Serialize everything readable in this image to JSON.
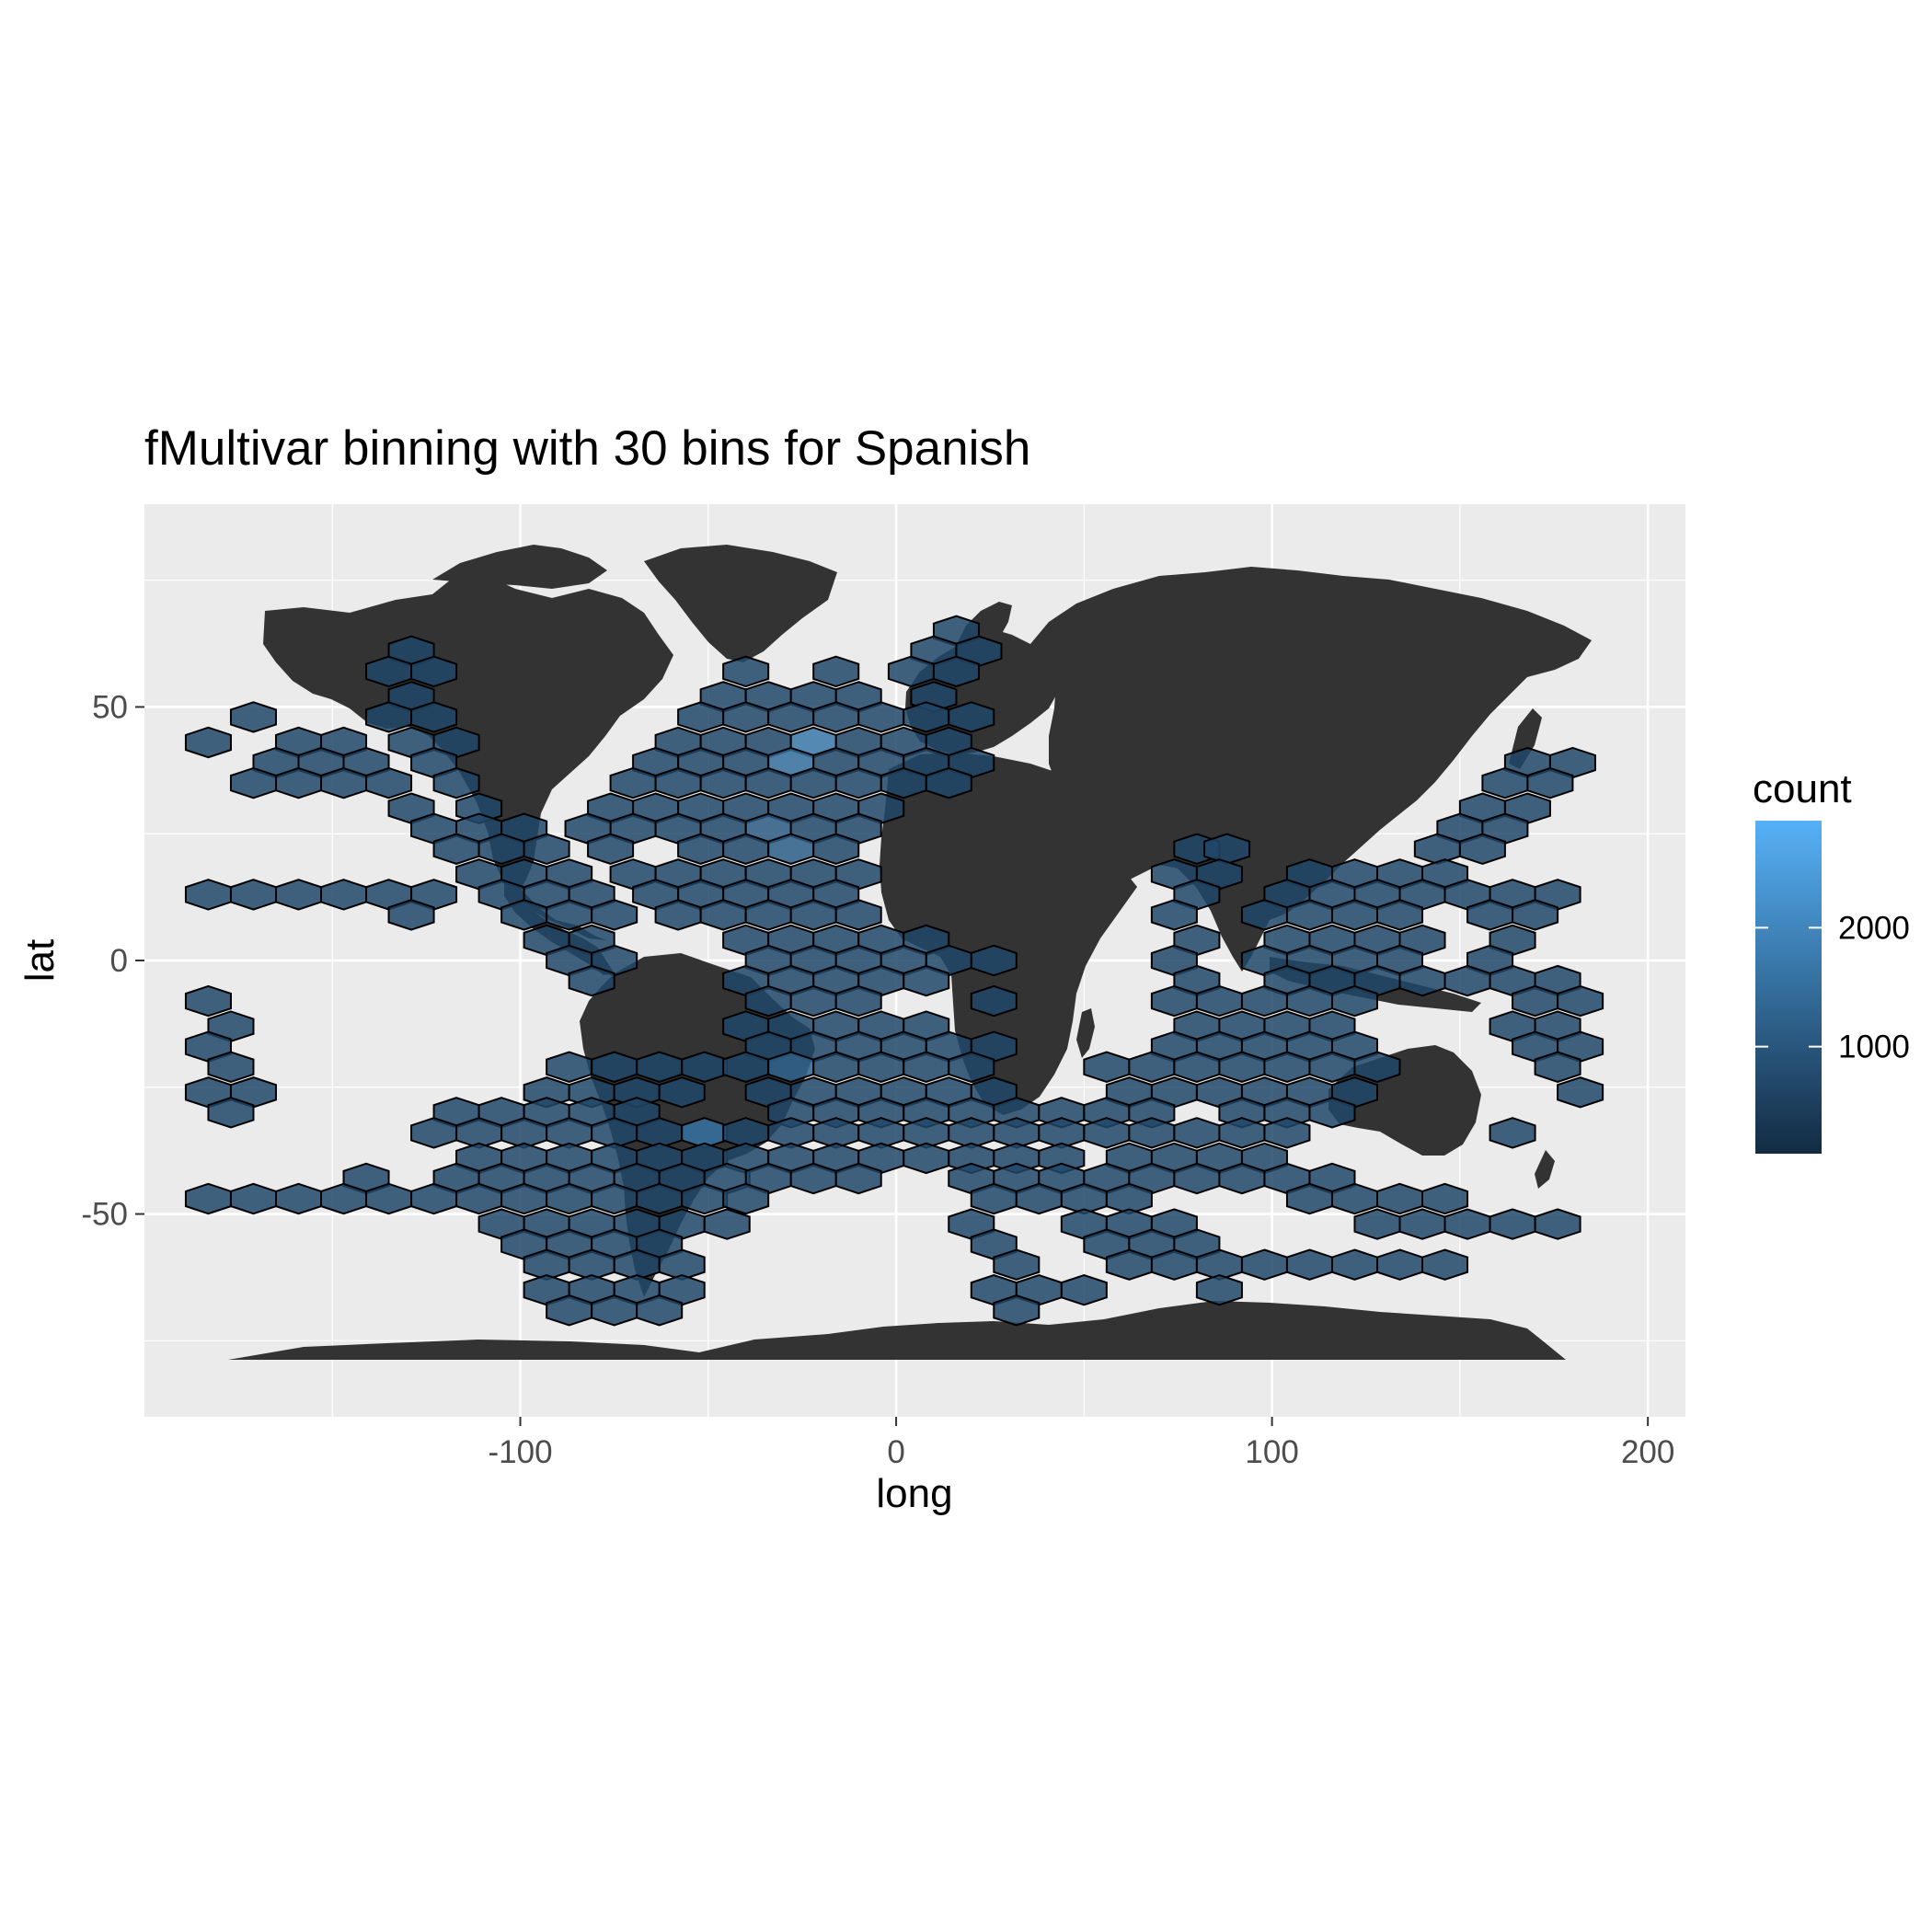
{
  "chart_data": {
    "type": "heatmap",
    "subtype": "hexbin over world map",
    "title": "fMultivar binning with 30 bins for Spanish",
    "xlabel": "long",
    "ylabel": "lat",
    "xlim": [
      -200,
      210
    ],
    "ylim": [
      -90,
      90
    ],
    "x_ticks": [
      -100,
      0,
      100,
      200
    ],
    "x_tick_labels": [
      "-100",
      "0",
      "100",
      "200"
    ],
    "y_ticks": [
      -50,
      0,
      50
    ],
    "y_tick_labels": [
      "-50",
      "0",
      "50"
    ],
    "grid": true,
    "background_color": "#ebebeb",
    "land_color": "#333333",
    "legend": {
      "title": "count",
      "placement": "right",
      "low_color": "#132b43",
      "high_color": "#56b1f7",
      "min": 100,
      "max": 2900,
      "ticks": [
        1000,
        2000
      ],
      "tick_labels": [
        "1000",
        "2000"
      ]
    },
    "hex_cols": 30,
    "hex_x_spacing": 12,
    "hex_lat_step": 4.4,
    "hex_rows": [
      {
        "lat": 65,
        "lons": [
          16
        ]
      },
      {
        "lat": 61,
        "lons": [
          -129,
          10,
          22
        ]
      },
      {
        "lat": 57,
        "lons": [
          -135,
          -123,
          -40,
          -16,
          4,
          16
        ]
      },
      {
        "lat": 52,
        "lons": [
          -129,
          -46,
          -34,
          -22,
          -10,
          10
        ]
      },
      {
        "lat": 48,
        "lons": [
          -171,
          -135,
          -123,
          -52,
          -40,
          -28,
          -16,
          -4,
          8,
          20
        ]
      },
      {
        "lat": 43,
        "lons": [
          -183,
          -159,
          -147,
          -129,
          -117,
          -58,
          -46,
          -34,
          -22,
          -10,
          2,
          14
        ]
      },
      {
        "lat": 39,
        "lons": [
          -165,
          -153,
          -141,
          -123,
          -64,
          -52,
          -40,
          -28,
          -16,
          -4,
          8,
          20,
          168,
          180
        ]
      },
      {
        "lat": 35,
        "lons": [
          -171,
          -159,
          -147,
          -135,
          -117,
          -70,
          -58,
          -46,
          -34,
          -22,
          -10,
          2,
          14,
          162,
          174
        ]
      },
      {
        "lat": 30,
        "lons": [
          -129,
          -111,
          -76,
          -64,
          -52,
          -40,
          -28,
          -16,
          -4,
          156,
          168
        ]
      },
      {
        "lat": 26,
        "lons": [
          -123,
          -111,
          -99,
          -82,
          -70,
          -58,
          -46,
          -34,
          -22,
          -10,
          150,
          162
        ]
      },
      {
        "lat": 22,
        "lons": [
          -117,
          -105,
          -93,
          -76,
          -52,
          -40,
          -28,
          -16,
          80,
          88,
          144,
          156
        ]
      },
      {
        "lat": 17,
        "lons": [
          -111,
          -99,
          -87,
          -70,
          -58,
          -46,
          -34,
          -22,
          -10,
          74,
          86,
          110,
          122,
          134,
          146
        ]
      },
      {
        "lat": 13,
        "lons": [
          -183,
          -171,
          -159,
          -147,
          -135,
          -123,
          -105,
          -93,
          -81,
          -64,
          -52,
          -40,
          -28,
          -16,
          80,
          104,
          116,
          128,
          140,
          152,
          164,
          176
        ]
      },
      {
        "lat": 9,
        "lons": [
          -129,
          -99,
          -87,
          -75,
          -58,
          -46,
          -34,
          -22,
          -10,
          74,
          98,
          110,
          122,
          134,
          158,
          170
        ]
      },
      {
        "lat": 4,
        "lons": [
          -93,
          -81,
          -40,
          -28,
          -16,
          -4,
          8,
          80,
          104,
          116,
          128,
          140,
          164
        ]
      },
      {
        "lat": 0,
        "lons": [
          -87,
          -75,
          -34,
          -22,
          -10,
          2,
          14,
          26,
          74,
          98,
          110,
          122,
          134,
          158
        ]
      },
      {
        "lat": -4,
        "lons": [
          -81,
          -40,
          -28,
          -16,
          -4,
          8,
          80,
          104,
          116,
          128,
          140,
          152,
          164,
          176
        ]
      },
      {
        "lat": -8,
        "lons": [
          -183,
          -34,
          -22,
          -10,
          26,
          74,
          86,
          98,
          110,
          122,
          170,
          182
        ]
      },
      {
        "lat": -13,
        "lons": [
          -177,
          -40,
          -28,
          -16,
          -4,
          8,
          80,
          92,
          104,
          116,
          164,
          176
        ]
      },
      {
        "lat": -17,
        "lons": [
          -183,
          -34,
          -22,
          -10,
          2,
          14,
          26,
          74,
          86,
          98,
          110,
          122,
          170,
          182
        ]
      },
      {
        "lat": -21,
        "lons": [
          -177,
          -87,
          -75,
          -63,
          -51,
          -40,
          -28,
          -16,
          -4,
          8,
          20,
          56,
          68,
          80,
          92,
          104,
          116,
          128,
          176
        ]
      },
      {
        "lat": -26,
        "lons": [
          -183,
          -171,
          -93,
          -81,
          -69,
          -57,
          -34,
          -22,
          -10,
          2,
          14,
          26,
          62,
          74,
          86,
          98,
          110,
          122,
          182
        ]
      },
      {
        "lat": -30,
        "lons": [
          -177,
          -117,
          -105,
          -93,
          -81,
          -69,
          -28,
          -16,
          -4,
          8,
          20,
          32,
          44,
          56,
          68,
          92,
          104,
          116
        ]
      },
      {
        "lat": -34,
        "lons": [
          -123,
          -111,
          -99,
          -87,
          -75,
          -63,
          -51,
          -40,
          -28,
          -16,
          -4,
          8,
          20,
          32,
          44,
          56,
          68,
          80,
          92,
          104,
          164
        ]
      },
      {
        "lat": -39,
        "lons": [
          -111,
          -99,
          -87,
          -75,
          -63,
          -51,
          -40,
          -28,
          -16,
          -4,
          8,
          20,
          32,
          44,
          62,
          74,
          86,
          98
        ]
      },
      {
        "lat": -43,
        "lons": [
          -141,
          -117,
          -105,
          -93,
          -81,
          -69,
          -57,
          -45,
          -34,
          -22,
          -10,
          20,
          32,
          44,
          56,
          68,
          80,
          92,
          104,
          116
        ]
      },
      {
        "lat": -47,
        "lons": [
          -183,
          -171,
          -159,
          -147,
          -135,
          -123,
          -111,
          -99,
          -87,
          -75,
          -63,
          -51,
          -40,
          26,
          38,
          50,
          62,
          110,
          122,
          134,
          146
        ]
      },
      {
        "lat": -52,
        "lons": [
          -105,
          -93,
          -81,
          -69,
          -57,
          -45,
          20,
          50,
          62,
          74,
          128,
          140,
          152,
          164,
          176
        ]
      },
      {
        "lat": -56,
        "lons": [
          -99,
          -87,
          -75,
          -63,
          26,
          56,
          68,
          80
        ]
      },
      {
        "lat": -60,
        "lons": [
          -93,
          -81,
          -69,
          -57,
          32,
          62,
          74,
          86,
          98,
          110,
          122,
          134,
          146
        ]
      },
      {
        "lat": -65,
        "lons": [
          -93,
          -81,
          -69,
          -57,
          26,
          38,
          50,
          86
        ]
      },
      {
        "lat": -69,
        "lons": [
          -87,
          -75,
          -63,
          32
        ]
      }
    ],
    "hot_cells": [
      {
        "lon": -16,
        "lat": 43,
        "count": 2900
      },
      {
        "lon": -10,
        "lat": 39,
        "count": 2500
      },
      {
        "lon": -22,
        "lat": 43,
        "count": 1700
      },
      {
        "lon": -28,
        "lat": 39,
        "count": 1500
      },
      {
        "lon": -16,
        "lat": 35,
        "count": 1500
      },
      {
        "lon": -51,
        "lat": -34,
        "count": 1600
      },
      {
        "lon": -57,
        "lat": -34,
        "count": 1500
      },
      {
        "lon": -45,
        "lat": -30,
        "count": 1400
      },
      {
        "lon": -40,
        "lat": -26,
        "count": 1300
      },
      {
        "lon": -28,
        "lat": -21,
        "count": 1300
      },
      {
        "lon": -34,
        "lat": 4,
        "count": 1300
      },
      {
        "lon": -40,
        "lat": 9,
        "count": 1200
      },
      {
        "lon": -28,
        "lat": 22,
        "count": 1150
      },
      {
        "lon": -34,
        "lat": 26,
        "count": 1100
      }
    ],
    "default_count": 700
  }
}
